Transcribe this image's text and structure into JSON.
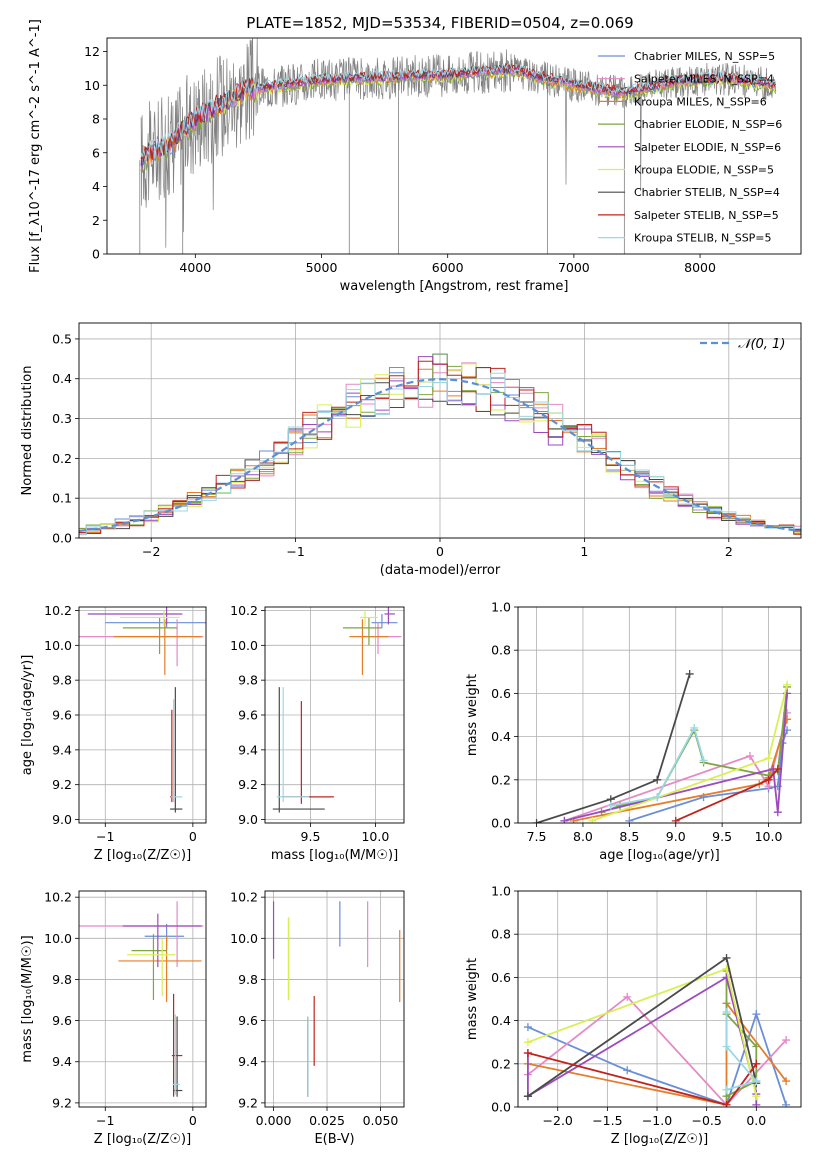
{
  "header": {
    "title": "PLATE=1852, MJD=53534, FIBERID=0504, z=0.069"
  },
  "models": [
    {
      "name": "Chabrier MILES",
      "nssp": "5",
      "color": "#6a8ed8"
    },
    {
      "name": "Salpeter MILES",
      "nssp": "4",
      "color": "#e48ac6"
    },
    {
      "name": "Kroupa MILES",
      "nssp": "6",
      "color": "#e57d2a"
    },
    {
      "name": "Chabrier ELODIE",
      "nssp": "6",
      "color": "#7fa642"
    },
    {
      "name": "Salpeter ELODIE",
      "nssp": "6",
      "color": "#9b4bbd"
    },
    {
      "name": "Kroupa ELODIE",
      "nssp": "5",
      "color": "#d9ef55"
    },
    {
      "name": "Chabrier STELIB",
      "nssp": "4",
      "color": "#4a4a4a"
    },
    {
      "name": "Salpeter STELIB",
      "nssp": "5",
      "color": "#c0241e"
    },
    {
      "name": "Kroupa STELIB",
      "nssp": "5",
      "color": "#9ad8e4"
    }
  ],
  "chart_data": [
    {
      "id": "spectrum",
      "type": "line",
      "xlabel": "wavelength [Angstrom, rest frame]",
      "ylabel": "Flux [f_λ10^-17 erg cm^-2 s^-1 A^-1]",
      "xlim": [
        3300,
        8800
      ],
      "ylim": [
        0,
        12.8
      ],
      "xticks": [
        4000,
        5000,
        6000,
        7000,
        8000
      ],
      "yticks": [
        0,
        2,
        4,
        6,
        8,
        10,
        12
      ],
      "grid": false,
      "legend": "top-right",
      "continuum": {
        "x": [
          3570,
          3800,
          4000,
          4400,
          5000,
          6000,
          6500,
          7000,
          7400,
          7800,
          8200,
          8500,
          8600
        ],
        "y": [
          5.6,
          6.5,
          8.0,
          9.7,
          10.3,
          10.6,
          10.9,
          10.0,
          9.5,
          10.2,
          10.4,
          10.1,
          9.9
        ]
      }
    },
    {
      "id": "residuals",
      "type": "histogram",
      "xlabel": "(data-model)/error",
      "ylabel": "Normed distribution",
      "xlim": [
        -2.5,
        2.5
      ],
      "ylim": [
        0,
        0.54
      ],
      "xticks": [
        -2,
        -1,
        0,
        1,
        2
      ],
      "yticks": [
        0,
        0.1,
        0.2,
        0.3,
        0.4,
        0.5
      ],
      "grid": true,
      "legend": "top-right",
      "reference": {
        "label": "𝒩(0, 1)",
        "mean": 0,
        "sigma": 1
      }
    },
    {
      "id": "age_vs_Z",
      "type": "errorbar",
      "xlabel": "Z [log₁₀(Z/Z☉)]",
      "ylabel": "age  [log₁₀(age/yr)]",
      "xlim": [
        -1.3,
        0.15
      ],
      "ylim": [
        8.98,
        10.22
      ],
      "xticks": [
        -1,
        0
      ],
      "yticks": [
        9.0,
        9.2,
        9.4,
        9.6,
        9.8,
        10.0,
        10.2
      ],
      "grid": true,
      "points": [
        {
          "model": 0,
          "x": -0.3,
          "xerr": [
            0.7,
            0.45
          ],
          "y": 10.13,
          "yerr": [
            0.03,
            0.05
          ]
        },
        {
          "model": 1,
          "x": -0.18,
          "xerr": [
            1.12,
            0.3
          ],
          "y": 10.05,
          "yerr": [
            0.17,
            0.1
          ]
        },
        {
          "model": 2,
          "x": -0.32,
          "xerr": [
            0.58,
            0.42
          ],
          "y": 10.05,
          "yerr": [
            0.22,
            0.1
          ]
        },
        {
          "model": 3,
          "x": -0.38,
          "xerr": [
            0.42,
            0.2
          ],
          "y": 10.1,
          "yerr": [
            0.15,
            0.06
          ]
        },
        {
          "model": 4,
          "x": -0.3,
          "xerr": [
            0.9,
            0.18
          ],
          "y": 10.18,
          "yerr": [
            0.06,
            0.04
          ]
        },
        {
          "model": 5,
          "x": -0.33,
          "xerr": [
            0.5,
            0.18
          ],
          "y": 10.16,
          "yerr": [
            0.05,
            0.04
          ]
        },
        {
          "model": 6,
          "x": -0.2,
          "xerr": [
            0.06,
            0.08
          ],
          "y": 9.06,
          "yerr": [
            0.02,
            0.7
          ]
        },
        {
          "model": 7,
          "x": -0.24,
          "xerr": [
            0.02,
            0.02
          ],
          "y": 9.13,
          "yerr": [
            0.03,
            0.5
          ]
        },
        {
          "model": 8,
          "x": -0.22,
          "xerr": [
            0.03,
            0.1
          ],
          "y": 9.13,
          "yerr": [
            0.03,
            0.56
          ]
        }
      ]
    },
    {
      "id": "age_vs_mass",
      "type": "errorbar",
      "xlabel": "mass [log₁₀(M/M☉)]",
      "ylabel": "",
      "xlim": [
        9.15,
        10.22
      ],
      "ylim": [
        8.98,
        10.22
      ],
      "xticks": [
        9.5,
        10.0
      ],
      "yticks": [
        9.0,
        9.2,
        9.4,
        9.6,
        9.8,
        10.0,
        10.2
      ],
      "grid": true,
      "points": [
        {
          "model": 0,
          "x": 10.05,
          "xerr": [
            0.08,
            0.12
          ],
          "y": 10.13,
          "yerr": [
            0.03,
            0.05
          ]
        },
        {
          "model": 1,
          "x": 10.02,
          "xerr": [
            0.1,
            0.18
          ],
          "y": 10.05,
          "yerr": [
            0.1,
            0.08
          ]
        },
        {
          "model": 2,
          "x": 9.9,
          "xerr": [
            0.1,
            0.2
          ],
          "y": 10.05,
          "yerr": [
            0.22,
            0.1
          ]
        },
        {
          "model": 3,
          "x": 9.95,
          "xerr": [
            0.2,
            0.1
          ],
          "y": 10.1,
          "yerr": [
            0.1,
            0.06
          ]
        },
        {
          "model": 4,
          "x": 10.1,
          "xerr": [
            0.03,
            0.05
          ],
          "y": 10.18,
          "yerr": [
            0.06,
            0.04
          ]
        },
        {
          "model": 5,
          "x": 9.92,
          "xerr": [
            0.04,
            0.1
          ],
          "y": 10.16,
          "yerr": [
            0.05,
            0.04
          ]
        },
        {
          "model": 6,
          "x": 9.26,
          "xerr": [
            0.05,
            0.35
          ],
          "y": 9.06,
          "yerr": [
            0.02,
            0.7
          ]
        },
        {
          "model": 7,
          "x": 9.43,
          "xerr": [
            0.15,
            0.25
          ],
          "y": 9.13,
          "yerr": [
            0.04,
            0.55
          ]
        },
        {
          "model": 8,
          "x": 9.29,
          "xerr": [
            0.05,
            0.2
          ],
          "y": 9.13,
          "yerr": [
            0.03,
            0.63
          ]
        }
      ]
    },
    {
      "id": "mass_weight_vs_age",
      "type": "line",
      "xlabel": "age  [log₁₀(age/yr)]",
      "ylabel": "mass weight",
      "xlim": [
        7.3,
        10.35
      ],
      "ylim": [
        0,
        1
      ],
      "xticks": [
        7.5,
        8.0,
        8.5,
        9.0,
        9.5,
        10.0
      ],
      "yticks": [
        0,
        0.2,
        0.4,
        0.6,
        0.8,
        1.0
      ],
      "grid": true,
      "series": [
        {
          "model": 0,
          "x": [
            8.5,
            9.3,
            10.0,
            10.1,
            10.15,
            10.2
          ],
          "y": [
            0.01,
            0.12,
            0.16,
            0.17,
            0.37,
            0.43
          ]
        },
        {
          "model": 1,
          "x": [
            7.8,
            9.8,
            10.0,
            10.2
          ],
          "y": [
            0.01,
            0.31,
            0.17,
            0.51
          ]
        },
        {
          "model": 2,
          "x": [
            7.9,
            9.9,
            10.0,
            10.2
          ],
          "y": [
            0.01,
            0.18,
            0.21,
            0.48
          ]
        },
        {
          "model": 3,
          "x": [
            8.2,
            8.4,
            8.8,
            9.2,
            9.3,
            10.0,
            10.1,
            10.2
          ],
          "y": [
            0.05,
            0.08,
            0.12,
            0.43,
            0.28,
            0.22,
            0.24,
            0.63
          ]
        },
        {
          "model": 4,
          "x": [
            7.8,
            10.05,
            10.1,
            10.2
          ],
          "y": [
            0.01,
            0.25,
            0.05,
            0.6
          ]
        },
        {
          "model": 5,
          "x": [
            8.1,
            10.0,
            10.2
          ],
          "y": [
            0.01,
            0.3,
            0.64
          ]
        },
        {
          "model": 6,
          "x": [
            7.5,
            8.3,
            8.8,
            9.15
          ],
          "y": [
            0.0,
            0.11,
            0.2,
            0.69
          ]
        },
        {
          "model": 7,
          "x": [
            9.0,
            10.0,
            10.1
          ],
          "y": [
            0.01,
            0.2,
            0.25
          ]
        },
        {
          "model": 8,
          "x": [
            8.3,
            8.8,
            9.2,
            9.3
          ],
          "y": [
            0.08,
            0.12,
            0.44,
            0.29
          ]
        }
      ]
    },
    {
      "id": "mass_vs_Z",
      "type": "errorbar",
      "xlabel": "Z [log₁₀(Z/Z☉)]",
      "ylabel": "mass [log₁₀(M/M☉)]",
      "xlim": [
        -1.3,
        0.15
      ],
      "ylim": [
        9.18,
        10.23
      ],
      "xticks": [
        -1,
        0
      ],
      "yticks": [
        9.2,
        9.4,
        9.6,
        9.8,
        10.0,
        10.2
      ],
      "grid": true,
      "points": [
        {
          "model": 0,
          "x": -0.3,
          "xerr": [
            0.25,
            0.2
          ],
          "y": 10.01,
          "yerr": [
            0.06,
            0.06
          ]
        },
        {
          "model": 1,
          "x": -0.18,
          "xerr": [
            1.12,
            0.3
          ],
          "y": 10.06,
          "yerr": [
            0.2,
            0.12
          ]
        },
        {
          "model": 2,
          "x": -0.3,
          "xerr": [
            0.55,
            0.4
          ],
          "y": 9.89,
          "yerr": [
            0.2,
            0.12
          ]
        },
        {
          "model": 3,
          "x": -0.45,
          "xerr": [
            0.25,
            0.15
          ],
          "y": 9.94,
          "yerr": [
            0.24,
            0.08
          ]
        },
        {
          "model": 4,
          "x": -0.4,
          "xerr": [
            0.4,
            0.5
          ],
          "y": 10.06,
          "yerr": [
            0.2,
            0.06
          ]
        },
        {
          "model": 5,
          "x": -0.35,
          "xerr": [
            0.4,
            0.15
          ],
          "y": 9.92,
          "yerr": [
            0.2,
            0.08
          ]
        },
        {
          "model": 6,
          "x": -0.18,
          "xerr": [
            0.04,
            0.06
          ],
          "y": 9.26,
          "yerr": [
            0.03,
            0.36
          ]
        },
        {
          "model": 7,
          "x": -0.22,
          "xerr": [
            0.02,
            0.1
          ],
          "y": 9.43,
          "yerr": [
            0.2,
            0.3
          ]
        },
        {
          "model": 8,
          "x": -0.2,
          "xerr": [
            0.03,
            0.05
          ],
          "y": 9.29,
          "yerr": [
            0.05,
            0.34
          ]
        }
      ]
    },
    {
      "id": "mass_vs_ebv",
      "type": "errorbar",
      "xlabel": "E(B-V)",
      "ylabel": "",
      "xlim": [
        -0.004,
        0.061
      ],
      "ylim": [
        9.18,
        10.23
      ],
      "xticks": [
        0.0,
        0.025,
        0.05
      ],
      "yticks": [
        9.2,
        9.4,
        9.6,
        9.8,
        10.0,
        10.2
      ],
      "grid": true,
      "points": [
        {
          "model": 0,
          "x": 0.031,
          "xerr": [
            0,
            0
          ],
          "y": 10.06,
          "yerr": [
            0.1,
            0.12
          ]
        },
        {
          "model": 1,
          "x": 0.044,
          "xerr": [
            0,
            0
          ],
          "y": 10.06,
          "yerr": [
            0.2,
            0.12
          ]
        },
        {
          "model": 2,
          "x": 0.059,
          "xerr": [
            0,
            0
          ],
          "y": 9.89,
          "yerr": [
            0.2,
            0.15
          ]
        },
        {
          "model": 3,
          "x": 0.007,
          "xerr": [
            0,
            0
          ],
          "y": 9.9,
          "yerr": [
            0.2,
            0.2
          ]
        },
        {
          "model": 4,
          "x": 0.0,
          "xerr": [
            0,
            0
          ],
          "y": 10.06,
          "yerr": [
            0.16,
            0.12
          ]
        },
        {
          "model": 5,
          "x": 0.007,
          "xerr": [
            0,
            0
          ],
          "y": 9.9,
          "yerr": [
            0.2,
            0.2
          ]
        },
        {
          "model": 6,
          "x": 0.016,
          "xerr": [
            0,
            0
          ],
          "y": 9.4,
          "yerr": [
            0.17,
            0.22
          ]
        },
        {
          "model": 7,
          "x": 0.019,
          "xerr": [
            0,
            0
          ],
          "y": 9.5,
          "yerr": [
            0.12,
            0.22
          ]
        },
        {
          "model": 8,
          "x": 0.016,
          "xerr": [
            0,
            0
          ],
          "y": 9.4,
          "yerr": [
            0.17,
            0.22
          ]
        }
      ]
    },
    {
      "id": "mass_weight_vs_Z",
      "type": "line",
      "xlabel": "Z [log₁₀(Z/Z☉)]",
      "ylabel": "mass weight",
      "xlim": [
        -2.4,
        0.45
      ],
      "ylim": [
        0,
        1
      ],
      "xticks": [
        -2.0,
        -1.5,
        -1.0,
        -0.5,
        0.0
      ],
      "yticks": [
        0,
        0.2,
        0.4,
        0.6,
        0.8,
        1.0
      ],
      "grid": true,
      "series": [
        {
          "model": 0,
          "x": [
            -2.3,
            -1.3,
            -0.3,
            0.0,
            0.3
          ],
          "y": [
            0.37,
            0.17,
            0.01,
            0.43,
            0.01
          ]
        },
        {
          "model": 1,
          "x": [
            -2.3,
            -1.3,
            -0.3,
            0.3
          ],
          "y": [
            0.15,
            0.51,
            0.01,
            0.31
          ]
        },
        {
          "model": 2,
          "x": [
            -2.3,
            -0.3,
            -0.3,
            0.3
          ],
          "y": [
            0.2,
            0.01,
            0.48,
            0.12
          ]
        },
        {
          "model": 3,
          "x": [
            -0.3,
            -0.3,
            0.0,
            0.0,
            -0.3
          ],
          "y": [
            0.63,
            0.43,
            0.28,
            0.12,
            0.05
          ]
        },
        {
          "model": 4,
          "x": [
            -2.3,
            -2.3,
            -0.3,
            0.0,
            0.0
          ],
          "y": [
            0.25,
            0.05,
            0.6,
            0.06,
            0.01
          ]
        },
        {
          "model": 5,
          "x": [
            -2.3,
            -0.3,
            0.0
          ],
          "y": [
            0.3,
            0.64,
            0.05
          ]
        },
        {
          "model": 6,
          "x": [
            -2.3,
            -0.3,
            0.0
          ],
          "y": [
            0.05,
            0.69,
            0.11
          ]
        },
        {
          "model": 7,
          "x": [
            -2.3,
            -0.3,
            0.0
          ],
          "y": [
            0.25,
            0.01,
            0.2
          ]
        },
        {
          "model": 8,
          "x": [
            -0.3,
            -0.3,
            0.0,
            -0.3
          ],
          "y": [
            0.44,
            0.28,
            0.12,
            0.08
          ]
        }
      ]
    }
  ]
}
